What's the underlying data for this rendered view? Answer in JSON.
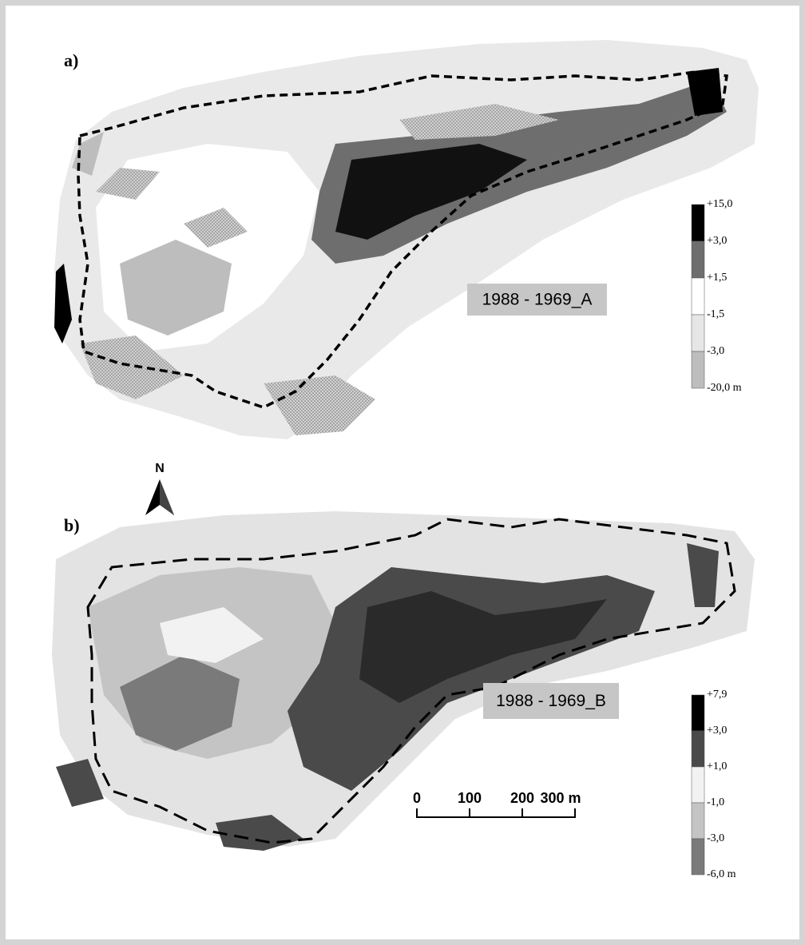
{
  "panels": [
    {
      "label": "a)",
      "title": "1988 - 1969_A",
      "legend": {
        "labels": [
          "+15,0",
          "+3,0",
          "+1,5",
          "-1,5",
          "-3,0",
          "-20,0 m"
        ],
        "colors": [
          "#000000",
          "#6e6e6e",
          "#ffffff",
          "#e6e6e6",
          "#bdbdbd"
        ]
      }
    },
    {
      "label": "b)",
      "title": "1988 - 1969_B",
      "legend": {
        "labels": [
          "+7,9",
          "+3,0",
          "+1,0",
          "-1,0",
          "-3,0",
          "-6,0 m"
        ],
        "colors": [
          "#000000",
          "#4a4a4a",
          "#f2f2f2",
          "#c4c4c4",
          "#7a7a7a"
        ]
      }
    }
  ],
  "north_arrow": "N",
  "scale_bar": {
    "labels": [
      "0",
      "100",
      "200",
      "300 m"
    ]
  }
}
